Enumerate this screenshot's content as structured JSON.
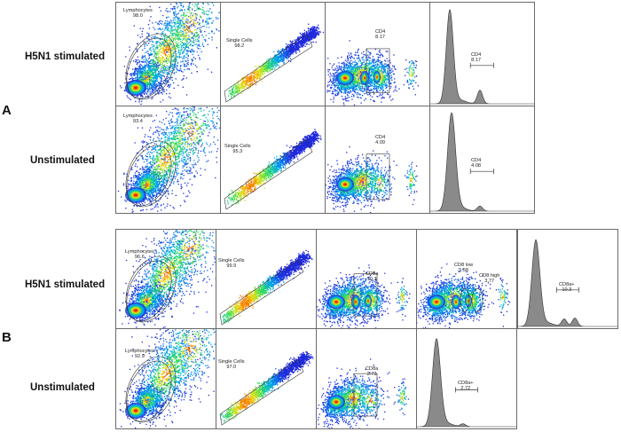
{
  "panels": [
    {
      "letter": "A",
      "rows": [
        {
          "label": "H5N1 stimulated",
          "plots": [
            {
              "gate": "Lymphocytes",
              "value": "98.0"
            },
            {
              "gate": "Single Cells",
              "value": "98.2"
            },
            {
              "gate": "CD4",
              "value": "8.17"
            },
            {
              "gate": "CD4",
              "value": "8.17"
            }
          ]
        },
        {
          "label": "Unstimulated",
          "plots": [
            {
              "gate": "Lymphocytes",
              "value": "93.4"
            },
            {
              "gate": "Single Cells",
              "value": "95.3"
            },
            {
              "gate": "CD4",
              "value": "4.09"
            },
            {
              "gate": "CD4",
              "value": "4.08"
            }
          ]
        }
      ]
    },
    {
      "letter": "B",
      "rows": [
        {
          "label": "H5N1 stimulated",
          "plots": [
            {
              "gate": "Lymphocytes",
              "value": "96.6"
            },
            {
              "gate": "Single Cells",
              "value": "99.9"
            },
            {
              "gate": "CD8a",
              "value": "10.3"
            },
            {
              "gate": "CD8 low",
              "value": "5.58",
              "gate2": "CD8 high",
              "value2": "3.77"
            },
            {
              "gate": "CD8a+",
              "value": "10.3"
            }
          ]
        },
        {
          "label": "Unstimulated",
          "plots": [
            {
              "gate": "Lymphocytes",
              "value": "92.9"
            },
            {
              "gate": "Single Cells",
              "value": "97.0"
            },
            {
              "gate": "CD8a",
              "value": "2.73"
            },
            {
              "gate": "CD8a+",
              "value": "2.72"
            }
          ]
        }
      ]
    }
  ]
}
